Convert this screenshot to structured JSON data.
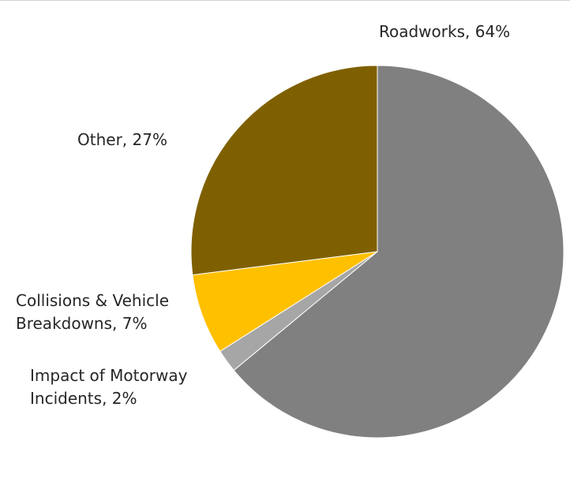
{
  "chart_data": {
    "type": "pie",
    "slices": [
      {
        "label": "Roadworks",
        "value": 64,
        "text": "Roadworks, 64%",
        "color": "#808080"
      },
      {
        "label": "Impact of Motorway Incidents",
        "value": 2,
        "text_lines": [
          "Impact of Motorway",
          "Incidents, 2%"
        ],
        "color": "#a6a6a6"
      },
      {
        "label": "Collisions & Vehicle Breakdowns",
        "value": 7,
        "text_lines": [
          "Collisions & Vehicle",
          "Breakdowns, 7%"
        ],
        "color": "#ffc000"
      },
      {
        "label": "Other",
        "value": 27,
        "text": "Other, 27%",
        "color": "#7f6000"
      }
    ],
    "start_angle": "12 o'clock",
    "direction": "clockwise",
    "legend": "none",
    "title": ""
  }
}
